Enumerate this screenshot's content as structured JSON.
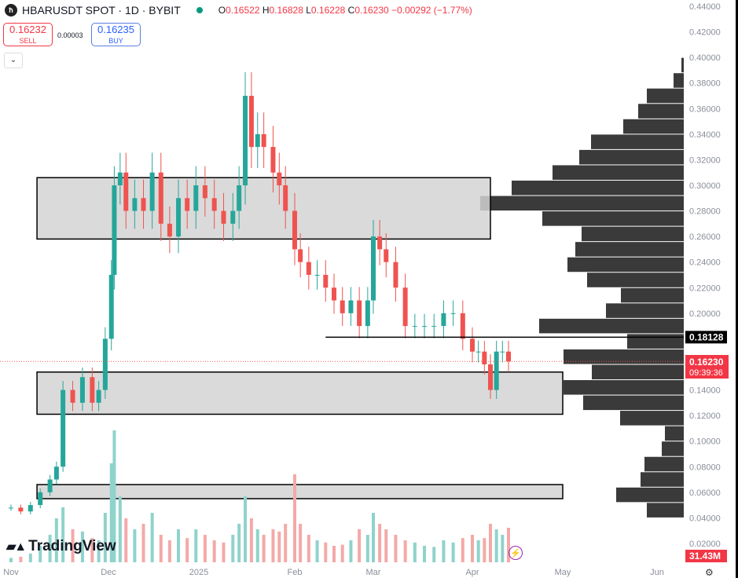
{
  "header": {
    "symbol": "HBARUSDT SPOT · 1D · BYBIT",
    "logo": "hbar-logo",
    "o_label": "O",
    "o": "0.16522",
    "h_label": "H",
    "h": "0.16828",
    "l_label": "L",
    "l": "0.16228",
    "c_label": "C",
    "c": "0.16230",
    "change": "−0.00292 (−1.77%)"
  },
  "trade": {
    "sell_price": "0.16232",
    "sell_label": "SELL",
    "spread": "0.00003",
    "buy_price": "0.16235",
    "buy_label": "BUY"
  },
  "branding": {
    "name": "TradingView"
  },
  "colors": {
    "up": "#26a69a",
    "down": "#ef5350",
    "profile": "#3a3a3a",
    "zone": "#d3d3d3",
    "price_tag": "#f23645"
  },
  "chart_data": {
    "type": "candlestick",
    "title": "HBARUSDT SPOT · 1D · BYBIT",
    "ylim": [
      0.0,
      0.44
    ],
    "y_ticks": [
      "0.44000",
      "0.42000",
      "0.40000",
      "0.38000",
      "0.36000",
      "0.34000",
      "0.32000",
      "0.30000",
      "0.28000",
      "0.26000",
      "0.24000",
      "0.22000",
      "0.20000",
      "0.14000",
      "0.12000",
      "0.10000",
      "0.08000",
      "0.06000",
      "0.04000",
      "0.02000"
    ],
    "x_ticks": [
      {
        "date": "2024-11-01",
        "label": "Nov"
      },
      {
        "date": "2024-12-01",
        "label": "Dec"
      },
      {
        "date": "2025-01-01",
        "label": "2025"
      },
      {
        "date": "2025-02-01",
        "label": "Feb"
      },
      {
        "date": "2025-03-01",
        "label": "Mar"
      },
      {
        "date": "2025-04-01",
        "label": "Apr"
      },
      {
        "date": "2025-05-01",
        "label": "May"
      },
      {
        "date": "2025-06-01",
        "label": "Jun"
      }
    ],
    "dates": [
      "2024-11-01",
      "2024-11-04",
      "2024-11-07",
      "2024-11-10",
      "2024-11-13",
      "2024-11-15",
      "2024-11-17",
      "2024-11-20",
      "2024-11-23",
      "2024-11-26",
      "2024-11-28",
      "2024-11-30",
      "2024-12-02",
      "2024-12-03",
      "2024-12-05",
      "2024-12-07",
      "2024-12-10",
      "2024-12-13",
      "2024-12-16",
      "2024-12-19",
      "2024-12-22",
      "2024-12-25",
      "2024-12-28",
      "2024-12-31",
      "2025-01-03",
      "2025-01-06",
      "2025-01-09",
      "2025-01-12",
      "2025-01-14",
      "2025-01-16",
      "2025-01-18",
      "2025-01-20",
      "2025-01-22",
      "2025-01-25",
      "2025-01-27",
      "2025-01-29",
      "2025-02-01",
      "2025-02-03",
      "2025-02-06",
      "2025-02-09",
      "2025-02-12",
      "2025-02-15",
      "2025-02-18",
      "2025-02-21",
      "2025-02-24",
      "2025-02-27",
      "2025-03-01",
      "2025-03-03",
      "2025-03-05",
      "2025-03-08",
      "2025-03-11",
      "2025-03-14",
      "2025-03-17",
      "2025-03-20",
      "2025-03-23",
      "2025-03-26",
      "2025-03-29",
      "2025-04-01",
      "2025-04-03",
      "2025-04-05",
      "2025-04-07",
      "2025-04-09",
      "2025-04-11",
      "2025-04-13"
    ],
    "close": [
      0.048,
      0.045,
      0.05,
      0.06,
      0.07,
      0.08,
      0.14,
      0.13,
      0.15,
      0.13,
      0.14,
      0.18,
      0.23,
      0.3,
      0.31,
      0.28,
      0.29,
      0.28,
      0.31,
      0.27,
      0.26,
      0.29,
      0.28,
      0.3,
      0.29,
      0.28,
      0.27,
      0.28,
      0.3,
      0.37,
      0.33,
      0.34,
      0.33,
      0.31,
      0.3,
      0.28,
      0.25,
      0.24,
      0.23,
      0.23,
      0.22,
      0.21,
      0.2,
      0.21,
      0.19,
      0.21,
      0.26,
      0.25,
      0.24,
      0.22,
      0.19,
      0.19,
      0.19,
      0.19,
      0.2,
      0.2,
      0.18,
      0.17,
      0.17,
      0.16,
      0.14,
      0.17,
      0.17,
      0.1623
    ],
    "volume_m": [
      4,
      5,
      8,
      15,
      25,
      40,
      50,
      30,
      28,
      22,
      20,
      45,
      90,
      120,
      60,
      40,
      30,
      35,
      45,
      25,
      20,
      30,
      22,
      30,
      25,
      20,
      18,
      25,
      35,
      60,
      40,
      30,
      25,
      30,
      28,
      35,
      80,
      35,
      25,
      20,
      18,
      15,
      16,
      20,
      30,
      25,
      45,
      35,
      30,
      25,
      20,
      18,
      15,
      14,
      20,
      18,
      22,
      25,
      20,
      22,
      35,
      30,
      25,
      31.43
    ],
    "last_price": "0.16230",
    "countdown": "09:39:36",
    "level_line": "0.18128",
    "last_volume": "31.43M",
    "zones": [
      {
        "from": "2024-11-09",
        "to": "2025-04-07",
        "low": 0.258,
        "high": 0.306
      },
      {
        "from": "2024-11-09",
        "to": "2025-05-01",
        "low": 0.121,
        "high": 0.154
      },
      {
        "from": "2024-11-09",
        "to": "2025-05-01",
        "low": 0.055,
        "high": 0.066
      }
    ],
    "level": {
      "from": "2025-02-12",
      "price": 0.18128
    },
    "volume_profile": {
      "top": 0.4,
      "bucket": 0.012,
      "values": [
        3,
        13,
        47,
        58,
        77,
        118,
        133,
        167,
        219,
        259,
        180,
        130,
        138,
        148,
        123,
        80,
        99,
        184,
        72,
        153,
        117,
        153,
        128,
        81,
        24,
        28,
        50,
        55,
        86,
        47
      ]
    }
  }
}
